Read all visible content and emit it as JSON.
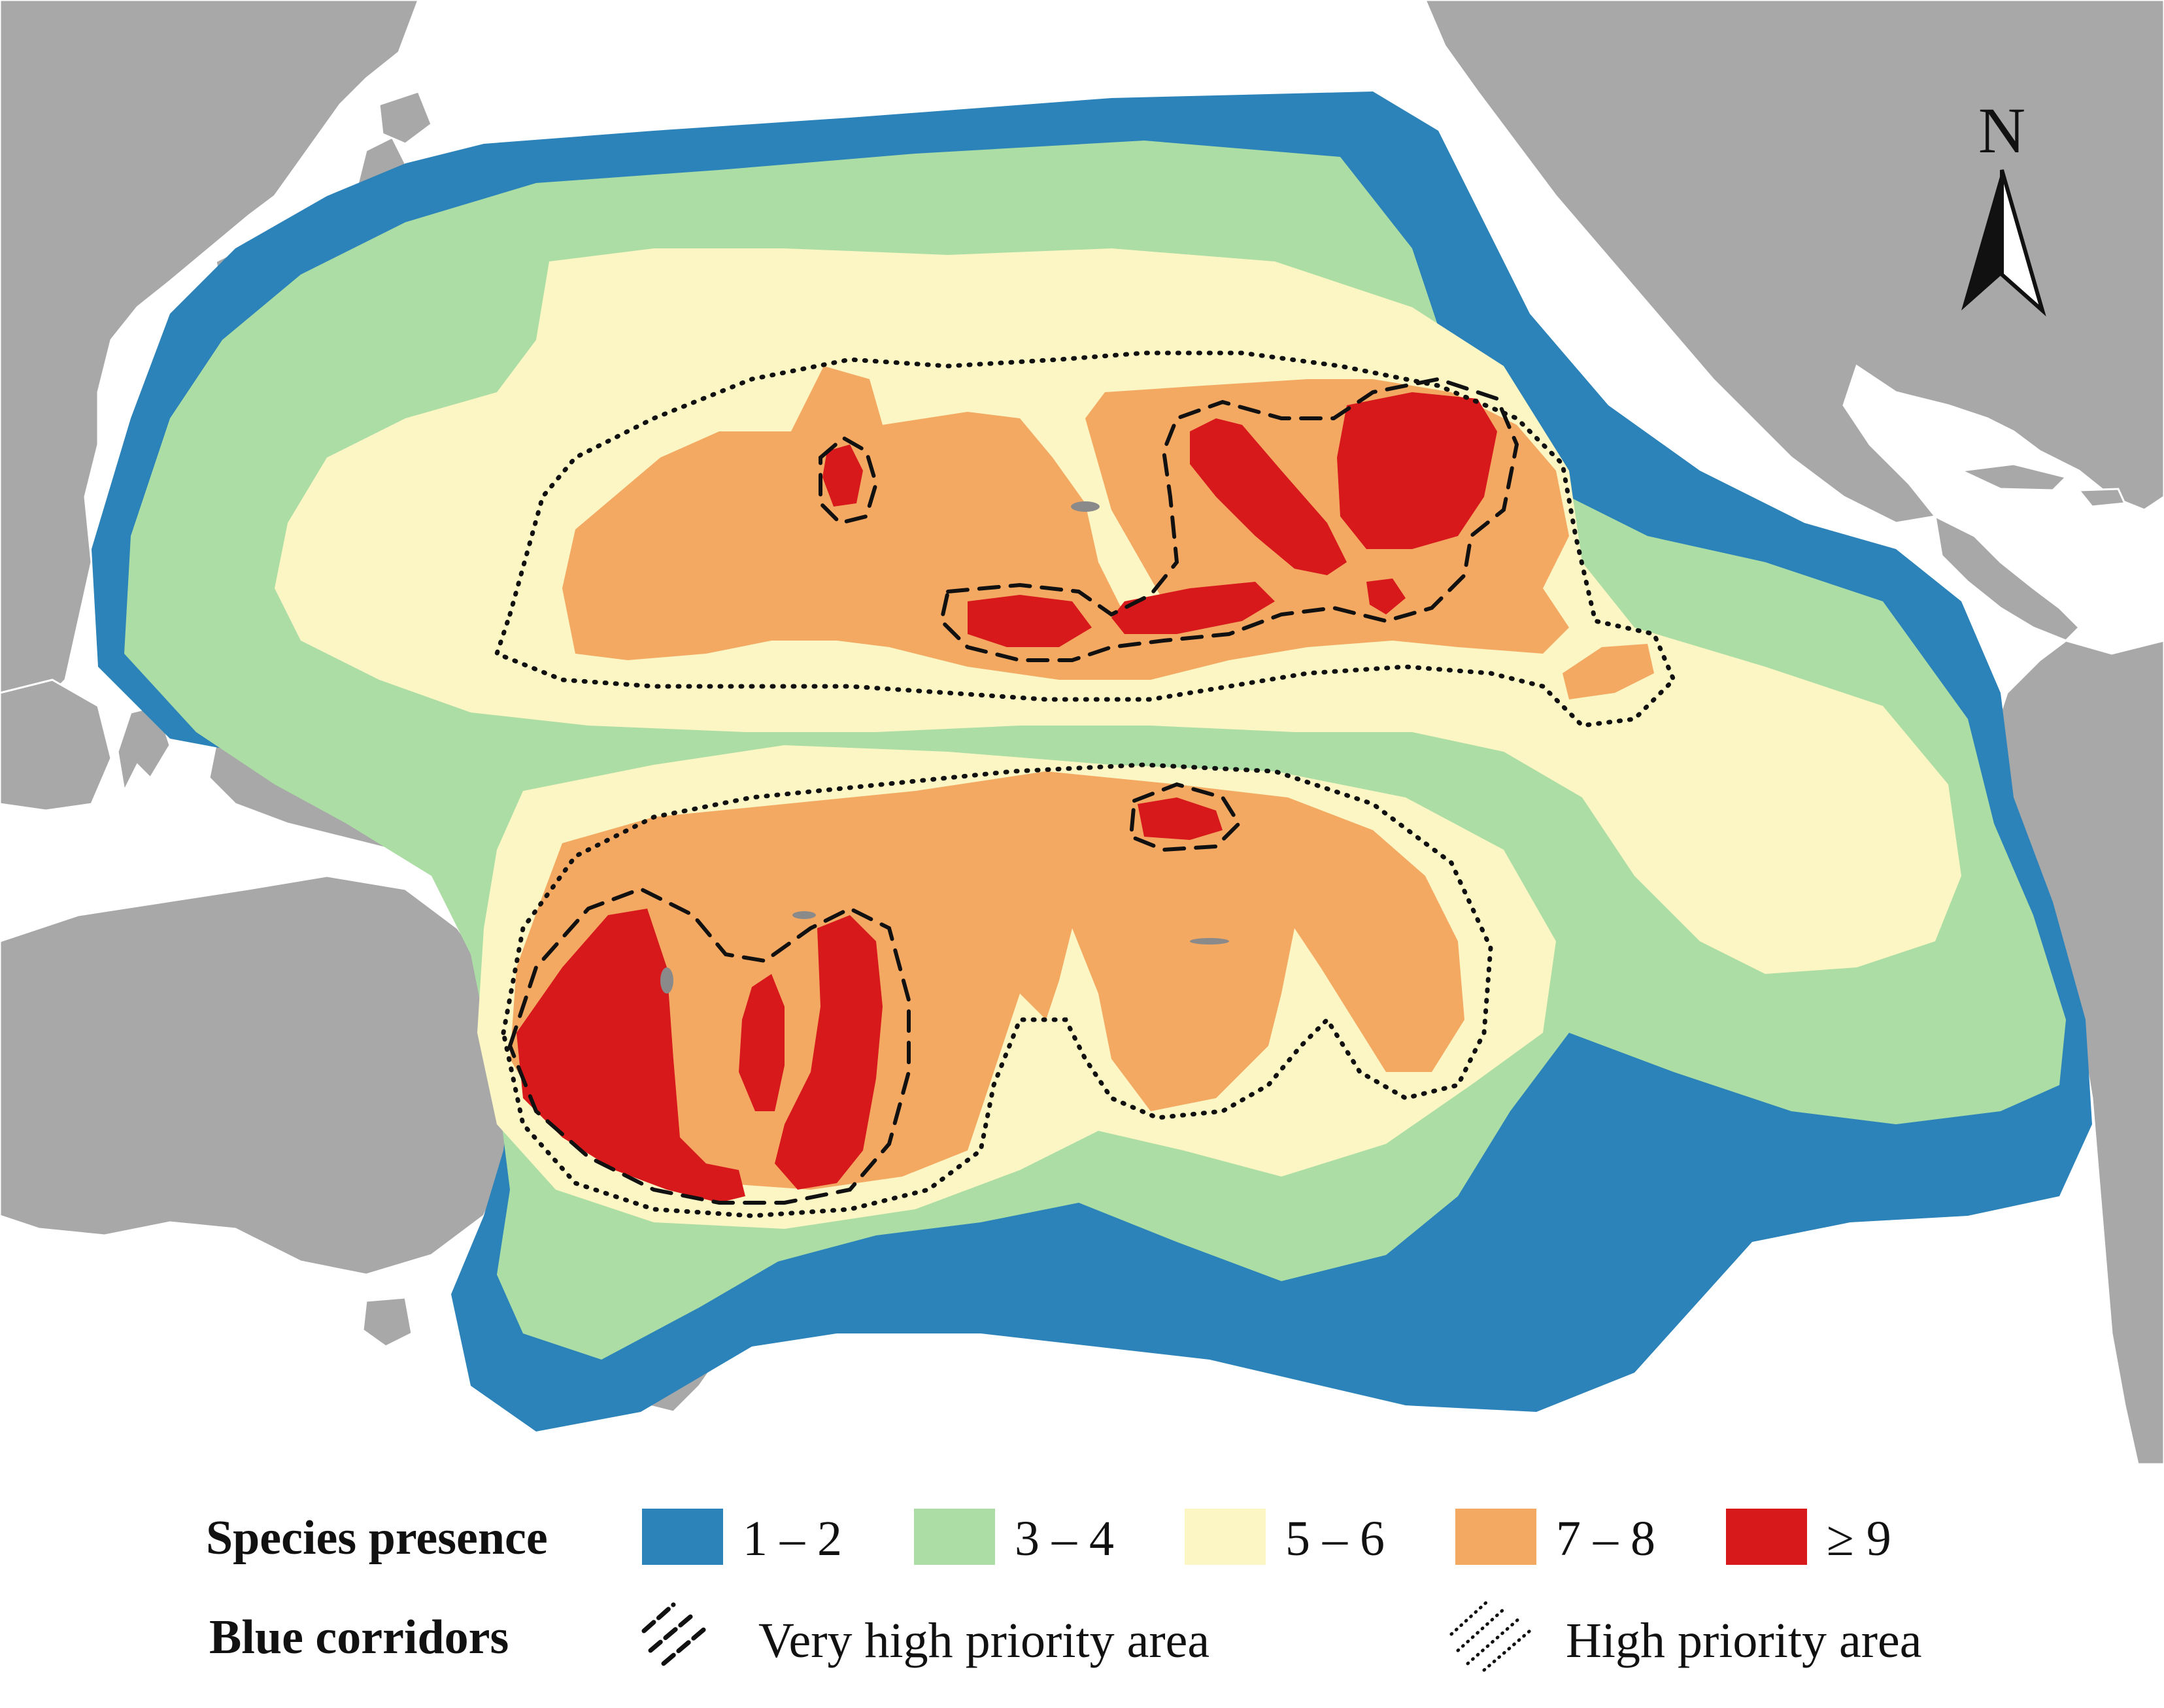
{
  "map": {
    "colors": {
      "ocean": "#ffffff",
      "land": "#a8a8a8",
      "land_border": "#ffffff",
      "class_1_2": "#2b83ba",
      "class_3_4": "#abdda4",
      "class_5_6": "#fbf6c4",
      "class_7_8": "#f4a963",
      "class_9_plus": "#d7191c",
      "corridor_line": "#111111"
    },
    "north_arrow": {
      "label": "N",
      "icon": "north-arrow-icon"
    }
  },
  "legend": {
    "species_presence": {
      "title": "Species presence",
      "classes": [
        {
          "label": "1 – 2",
          "color": "#2b83ba"
        },
        {
          "label": "3 – 4",
          "color": "#abdda4"
        },
        {
          "label": "5 – 6",
          "color": "#fbf6c4"
        },
        {
          "label": "7 – 8",
          "color": "#f4a963"
        },
        {
          "label": "≥ 9",
          "color": "#d7191c"
        }
      ]
    },
    "blue_corridors": {
      "title": "Blue corridors",
      "very_high": {
        "label": "Very high priority area",
        "icon": "dashed-hatch-icon"
      },
      "high": {
        "label": "High priority area",
        "icon": "dotted-hatch-icon"
      }
    }
  }
}
